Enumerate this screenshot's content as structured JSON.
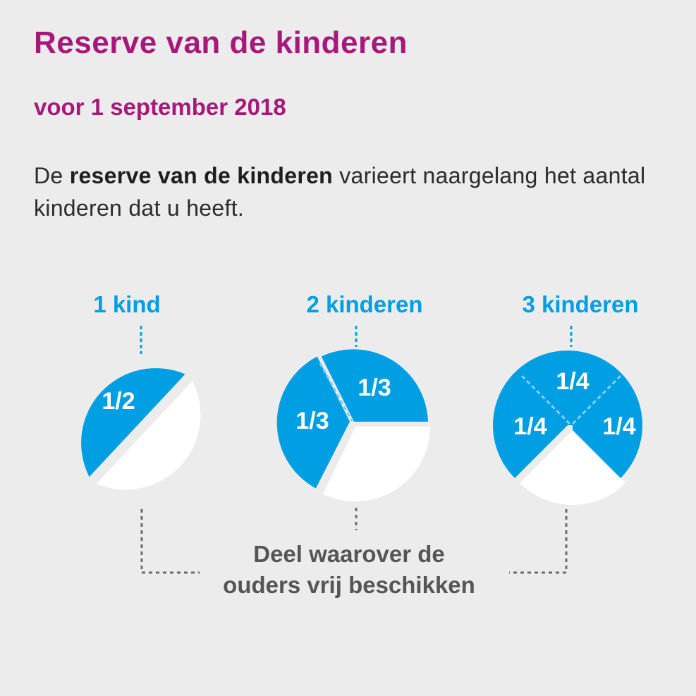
{
  "title": "Reserve van de kinderen",
  "subtitle": "voor 1 september 2018",
  "intro": {
    "part1": "De ",
    "bold": "reserve van de kinderen",
    "part2": " varieert naargelang het aantal kinderen dat u heeft."
  },
  "colors": {
    "accent": "#a6197a",
    "blue": "#009fe3",
    "white": "#ffffff",
    "caption": "#555555"
  },
  "pies": [
    {
      "label": "1 kind",
      "slice_label": "1/2"
    },
    {
      "label": "2 kinderen",
      "slice_labels": [
        "1/3",
        "1/3"
      ]
    },
    {
      "label": "3 kinderen",
      "slice_labels": [
        "1/4",
        "1/4",
        "1/4"
      ]
    }
  ],
  "caption": {
    "line1": "Deel waarover de",
    "line2": "ouders vrij beschikken"
  }
}
